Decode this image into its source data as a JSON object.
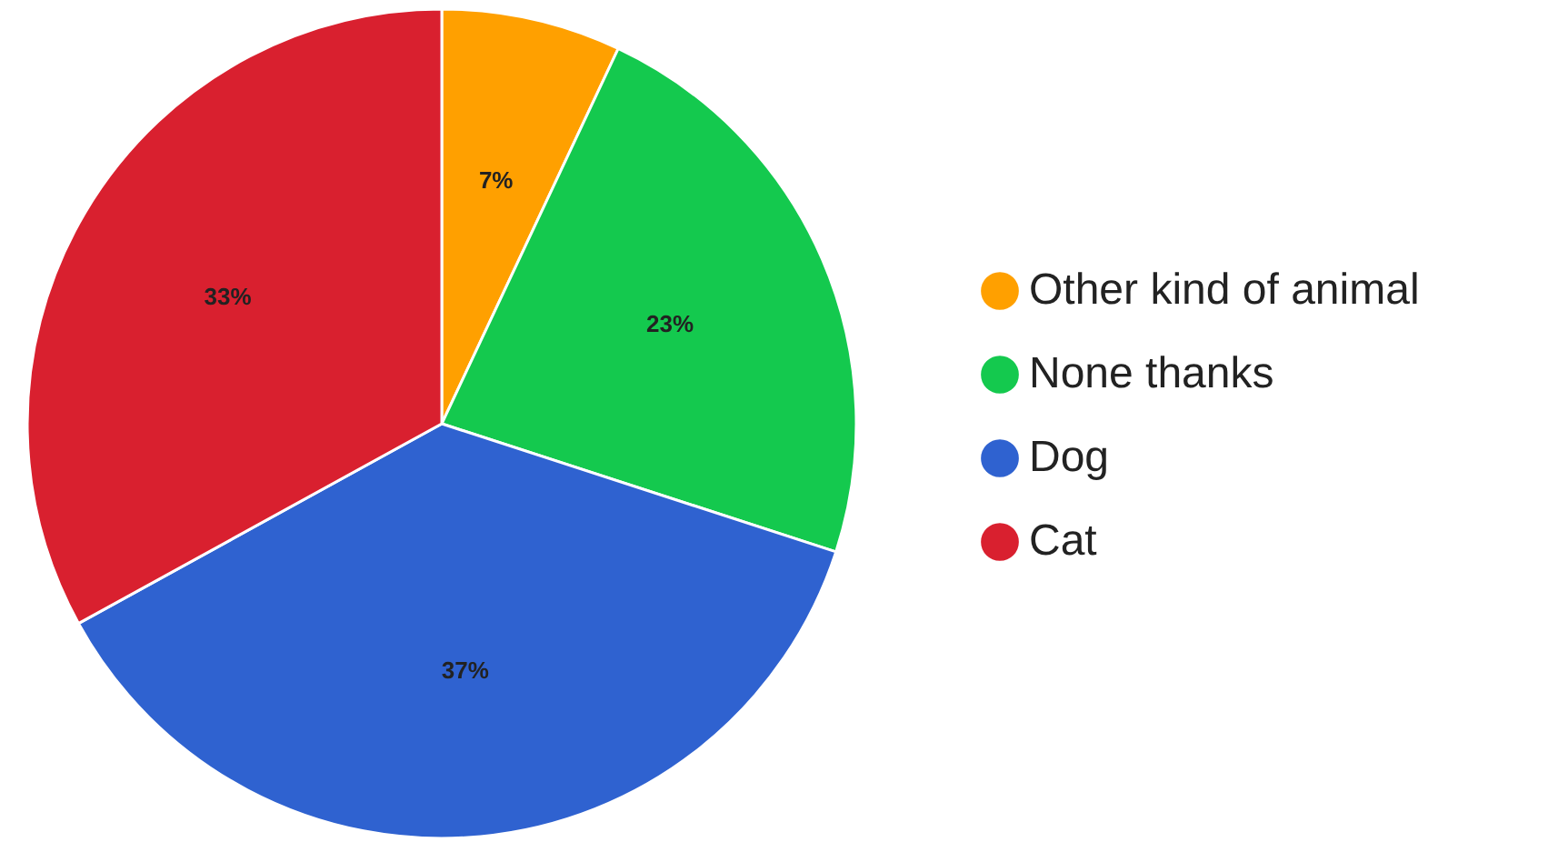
{
  "chart_data": {
    "type": "pie",
    "categories": [
      "Other kind of animal",
      "None thanks",
      "Dog",
      "Cat"
    ],
    "values": [
      7,
      23,
      37,
      33
    ],
    "colors": [
      "#ffa000",
      "#14c94e",
      "#2f62d0",
      "#d9202f"
    ],
    "value_labels": [
      "7%",
      "23%",
      "37%",
      "33%"
    ],
    "legend": "right"
  }
}
